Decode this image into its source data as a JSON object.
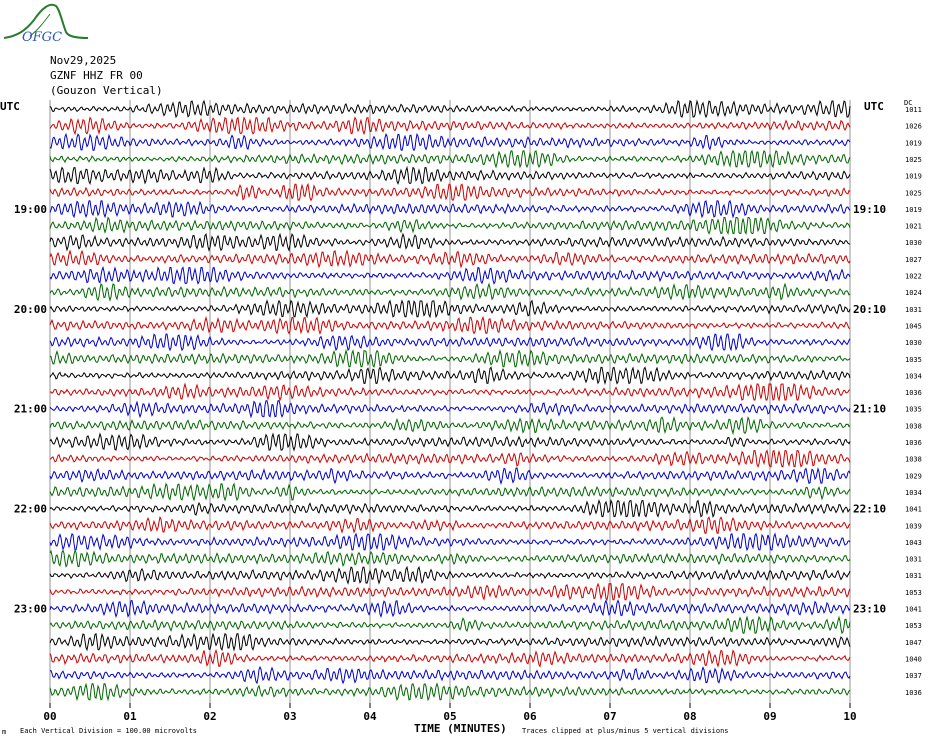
{
  "logo": {
    "text": "OFGC",
    "color": "#2a7d2e",
    "text_color": "#2b57b8"
  },
  "header": {
    "date": "Nov29,2025",
    "station": "GZNF HHZ FR 00",
    "location": "(Gouzon Vertical)"
  },
  "labels": {
    "utc_left": "UTC",
    "utc_right": "UTC",
    "dc": "DC",
    "x_title": "TIME (MINUTES)",
    "footer_left": "Each Vertical Division =  100.00 microvolts",
    "footer_right": "Traces clipped at plus/minus 5 vertical divisions",
    "corner": "m"
  },
  "chart_data": {
    "type": "line",
    "title": "",
    "xlabel": "TIME (MINUTES)",
    "xlim": [
      0,
      10
    ],
    "x_ticks": [
      "00",
      "01",
      "02",
      "03",
      "04",
      "05",
      "06",
      "07",
      "08",
      "09",
      "10"
    ],
    "trace_count": 36,
    "trace_colors": [
      "#000000",
      "#cc0000",
      "#0000cc",
      "#006600"
    ],
    "left_time_labels": [
      {
        "trace": 6,
        "label": "19:00"
      },
      {
        "trace": 12,
        "label": "20:00"
      },
      {
        "trace": 18,
        "label": "21:00"
      },
      {
        "trace": 24,
        "label": "22:00"
      },
      {
        "trace": 30,
        "label": "23:00"
      }
    ],
    "right_time_labels": [
      {
        "trace": 6,
        "label": "19:10"
      },
      {
        "trace": 12,
        "label": "20:10"
      },
      {
        "trace": 18,
        "label": "21:10"
      },
      {
        "trace": 24,
        "label": "22:10"
      },
      {
        "trace": 30,
        "label": "23:10"
      }
    ],
    "dc_offsets": [
      1011,
      1026,
      1019,
      1025,
      1019,
      1025,
      1019,
      1021,
      1030,
      1027,
      1022,
      1024,
      1031,
      1045,
      1030,
      1035,
      1034,
      1036,
      1035,
      1038,
      1036,
      1038,
      1029,
      1034,
      1041,
      1039,
      1043,
      1031,
      1031,
      1053,
      1041,
      1053,
      1047,
      1040,
      1037,
      1036
    ]
  }
}
